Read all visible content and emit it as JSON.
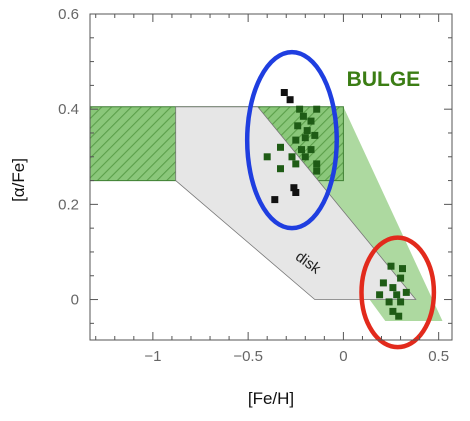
{
  "chart_data": {
    "type": "scatter",
    "title": "",
    "xlabel": "[Fe/H]",
    "ylabel": "[α/Fe]",
    "xlim": [
      -1.33,
      0.57
    ],
    "ylim": [
      -0.085,
      0.6
    ],
    "x_ticks": [
      -1,
      -0.5,
      0,
      0.5
    ],
    "x_tick_labels": [
      "−1",
      "−0.5",
      "0",
      "0.5"
    ],
    "y_ticks": [
      0,
      0.2,
      0.4,
      0.6
    ],
    "y_tick_labels": [
      "0",
      "0.2",
      "0.4",
      "0.6"
    ],
    "grid": false,
    "annotations": [
      {
        "text": "BULGE",
        "x": 0.21,
        "y": 0.465,
        "color": "#3b7d14"
      },
      {
        "text": "disk",
        "x": -0.2,
        "y": 0.08,
        "rotation_deg": 36
      }
    ],
    "regions": [
      {
        "label": "bulge-trend-band",
        "fill": "#9fd28f",
        "polygon": [
          [
            -1.33,
            0.405
          ],
          [
            0.0,
            0.405
          ],
          [
            0.52,
            -0.045
          ],
          [
            0.22,
            -0.045
          ],
          [
            -0.32,
            0.25
          ],
          [
            -1.33,
            0.25
          ]
        ]
      },
      {
        "label": "thick-disk-hatched-box",
        "fill": "#7cbd6c",
        "hatched": true,
        "polygon": [
          [
            -1.33,
            0.405
          ],
          [
            0.0,
            0.405
          ],
          [
            0.0,
            0.25
          ],
          [
            -1.33,
            0.25
          ]
        ]
      },
      {
        "label": "disk-band",
        "fill": "#e6e6e6",
        "polygon": [
          [
            -0.88,
            0.405
          ],
          [
            -0.45,
            0.405
          ],
          [
            0.38,
            0.0
          ],
          [
            -0.15,
            0.0
          ],
          [
            -0.88,
            0.25
          ]
        ]
      }
    ],
    "ellipses": [
      {
        "label": "metal-poor-bulge-stars",
        "stroke": "#1f3ee0",
        "cx": -0.27,
        "cy": 0.335,
        "rx": 0.235,
        "ry": 0.185
      },
      {
        "label": "metal-rich-bulge-stars",
        "stroke": "#e22a1c",
        "cx": 0.285,
        "cy": 0.015,
        "rx": 0.19,
        "ry": 0.115
      }
    ],
    "series": [
      {
        "marker": "square",
        "points": [
          {
            "x": -0.31,
            "y": 0.435,
            "color": "#111111"
          },
          {
            "x": -0.28,
            "y": 0.42,
            "color": "#111111"
          },
          {
            "x": -0.23,
            "y": 0.4,
            "color": "#1f5c16"
          },
          {
            "x": -0.14,
            "y": 0.4,
            "color": "#1f5c16"
          },
          {
            "x": -0.21,
            "y": 0.385,
            "color": "#1f5c16"
          },
          {
            "x": -0.17,
            "y": 0.375,
            "color": "#1f5c16"
          },
          {
            "x": -0.24,
            "y": 0.365,
            "color": "#1f5c16"
          },
          {
            "x": -0.19,
            "y": 0.355,
            "color": "#1f5c16"
          },
          {
            "x": -0.2,
            "y": 0.34,
            "color": "#1f5c16"
          },
          {
            "x": -0.15,
            "y": 0.345,
            "color": "#1f5c16"
          },
          {
            "x": -0.25,
            "y": 0.335,
            "color": "#1f5c16"
          },
          {
            "x": -0.33,
            "y": 0.32,
            "color": "#1f5c16"
          },
          {
            "x": -0.22,
            "y": 0.315,
            "color": "#1f5c16"
          },
          {
            "x": -0.17,
            "y": 0.315,
            "color": "#1f5c16"
          },
          {
            "x": -0.27,
            "y": 0.3,
            "color": "#1f5c16"
          },
          {
            "x": -0.2,
            "y": 0.3,
            "color": "#1f5c16"
          },
          {
            "x": -0.4,
            "y": 0.3,
            "color": "#1f5c16"
          },
          {
            "x": -0.14,
            "y": 0.285,
            "color": "#1f5c16"
          },
          {
            "x": -0.25,
            "y": 0.285,
            "color": "#1f5c16"
          },
          {
            "x": -0.33,
            "y": 0.275,
            "color": "#1f5c16"
          },
          {
            "x": -0.14,
            "y": 0.27,
            "color": "#1f5c16"
          },
          {
            "x": -0.26,
            "y": 0.235,
            "color": "#111111"
          },
          {
            "x": -0.25,
            "y": 0.225,
            "color": "#111111"
          },
          {
            "x": -0.36,
            "y": 0.21,
            "color": "#111111"
          },
          {
            "x": 0.25,
            "y": 0.07,
            "color": "#1f5c16"
          },
          {
            "x": 0.31,
            "y": 0.065,
            "color": "#1f5c16"
          },
          {
            "x": 0.3,
            "y": 0.045,
            "color": "#1f5c16"
          },
          {
            "x": 0.21,
            "y": 0.035,
            "color": "#1f5c16"
          },
          {
            "x": 0.26,
            "y": 0.025,
            "color": "#1f5c16"
          },
          {
            "x": 0.19,
            "y": 0.01,
            "color": "#1f5c16"
          },
          {
            "x": 0.28,
            "y": 0.01,
            "color": "#1f5c16"
          },
          {
            "x": 0.33,
            "y": 0.015,
            "color": "#1f5c16"
          },
          {
            "x": 0.24,
            "y": -0.005,
            "color": "#1f5c16"
          },
          {
            "x": 0.3,
            "y": -0.005,
            "color": "#1f5c16"
          },
          {
            "x": 0.26,
            "y": -0.025,
            "color": "#1f5c16"
          },
          {
            "x": 0.29,
            "y": -0.035,
            "color": "#1f5c16"
          }
        ]
      }
    ]
  }
}
